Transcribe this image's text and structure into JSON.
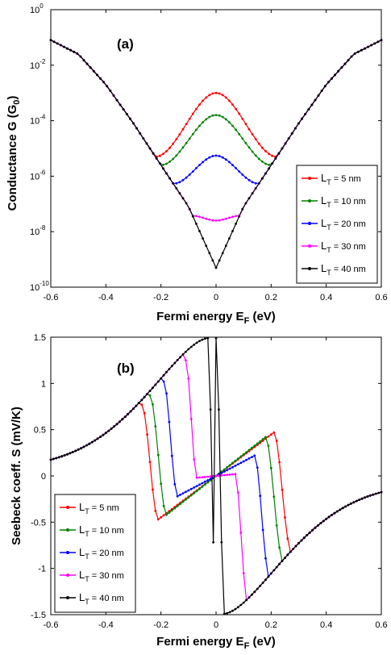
{
  "chart_data": [
    {
      "type": "line",
      "panel_label": "(a)",
      "xlabel": "Fermi energy E",
      "xlabel_sub": "F",
      "xlabel_unit": " (eV)",
      "ylabel": "Conductance G (G",
      "ylabel_sub": "0",
      "ylabel_end": ")",
      "xlim": [
        -0.6,
        0.6
      ],
      "ylim": [
        1e-10,
        1
      ],
      "yscale": "log",
      "xticks": [
        "-0.6",
        "-0.4",
        "-0.2",
        "0",
        "0.2",
        "0.4",
        "0.6"
      ],
      "yticks": [
        {
          "base": "10",
          "exp": "0",
          "value": 1
        },
        {
          "base": "10",
          "exp": "-2",
          "value": 0.01
        },
        {
          "base": "10",
          "exp": "-4",
          "value": 0.0001
        },
        {
          "base": "10",
          "exp": "-6",
          "value": 1e-06
        },
        {
          "base": "10",
          "exp": "-8",
          "value": 1e-08
        },
        {
          "base": "10",
          "exp": "-10",
          "value": 1e-10
        }
      ],
      "legend_position": "right",
      "series": [
        {
          "name": "L",
          "name_sub": "T",
          "name_rest": " = 5 nm",
          "color": "#ff0000",
          "gap_center": 0.001,
          "gap_edge": 0.22
        },
        {
          "name": "L",
          "name_sub": "T",
          "name_rest": " = 10 nm",
          "color": "#008000",
          "gap_center": 0.00016,
          "gap_edge": 0.2
        },
        {
          "name": "L",
          "name_sub": "T",
          "name_rest": " = 20 nm",
          "color": "#0000ff",
          "gap_center": 5.5e-06,
          "gap_edge": 0.155
        },
        {
          "name": "L",
          "name_sub": "T",
          "name_rest": " = 30 nm",
          "color": "#ff00ff",
          "gap_center": 2.5e-08,
          "gap_edge": 0.085
        },
        {
          "name": "L",
          "name_sub": "T",
          "name_rest": " = 40 nm",
          "color": "#000000",
          "gap_center": 5e-10,
          "gap_edge": 0.0
        }
      ],
      "envelope": [
        [
          -0.6,
          0.08
        ],
        [
          -0.5,
          0.025
        ],
        [
          -0.4,
          0.002
        ],
        [
          -0.3,
          8e-05
        ],
        [
          -0.2,
          2.5e-06
        ],
        [
          -0.1,
          8e-08
        ],
        [
          0,
          5e-10
        ],
        [
          0.1,
          8e-08
        ],
        [
          0.2,
          2.5e-06
        ],
        [
          0.3,
          8e-05
        ],
        [
          0.4,
          0.002
        ],
        [
          0.5,
          0.025
        ],
        [
          0.6,
          0.08
        ]
      ]
    },
    {
      "type": "line",
      "panel_label": "(b)",
      "xlabel": "Fermi energy E",
      "xlabel_sub": "F",
      "xlabel_unit": " (eV)",
      "ylabel": "Seebeck coeff. S (mV/K)",
      "xlim": [
        -0.6,
        0.6
      ],
      "ylim": [
        -1.5,
        1.5
      ],
      "xticks": [
        "-0.6",
        "-0.4",
        "-0.2",
        "0",
        "0.2",
        "0.4",
        "0.6"
      ],
      "yticks": [
        "1.5",
        "1",
        "0.5",
        "0",
        "-0.5",
        "-1",
        "-1.5"
      ],
      "ytick_values": [
        1.5,
        1,
        0.5,
        0,
        -0.5,
        -1,
        -1.5
      ],
      "legend_position": "lower-left",
      "series": [
        {
          "name": "L",
          "name_sub": "T",
          "name_rest": " = 5 nm",
          "color": "#ff0000",
          "peak_x": -0.27,
          "peak_y": 0.77,
          "drop_x": -0.21,
          "min_y": -0.47,
          "zero_x": 0.0
        },
        {
          "name": "L",
          "name_sub": "T",
          "name_rest": " = 10 nm",
          "color": "#008000",
          "peak_x": -0.24,
          "peak_y": 0.87,
          "drop_x": -0.18,
          "min_y": -0.42,
          "zero_x": 0.0
        },
        {
          "name": "L",
          "name_sub": "T",
          "name_rest": " = 20 nm",
          "color": "#0000ff",
          "peak_x": -0.19,
          "peak_y": 1.02,
          "drop_x": -0.14,
          "min_y": -0.22,
          "zero_x": 0.0
        },
        {
          "name": "L",
          "name_sub": "T",
          "name_rest": " = 30 nm",
          "color": "#ff00ff",
          "peak_x": -0.11,
          "peak_y": 1.25,
          "drop_x": -0.07,
          "min_y": -0.02,
          "zero_x": 0.0
        },
        {
          "name": "L",
          "name_sub": "T",
          "name_rest": " = 40 nm",
          "color": "#000000",
          "peak_x": -0.03,
          "peak_y": 1.49,
          "drop_x": 0.0,
          "min_y": -1.49,
          "zero_x": 0.0
        }
      ]
    }
  ]
}
